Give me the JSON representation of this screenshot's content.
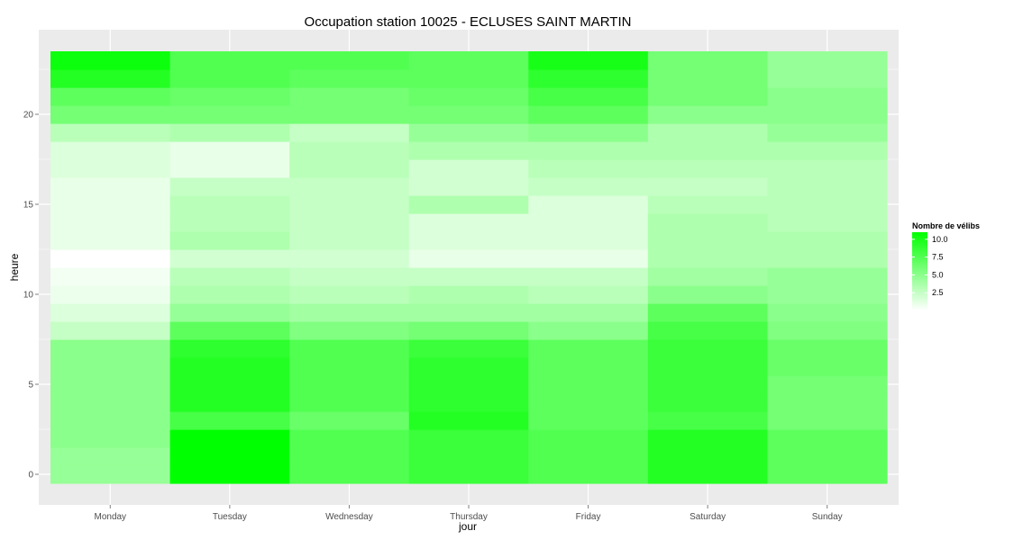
{
  "chart_data": {
    "type": "heatmap",
    "title": "Occupation station 10025 - ECLUSES SAINT MARTIN",
    "xlabel": "jour",
    "ylabel": "heure",
    "categories": [
      "Monday",
      "Tuesday",
      "Wednesday",
      "Thursday",
      "Friday",
      "Saturday",
      "Sunday"
    ],
    "hours": [
      0,
      1,
      2,
      3,
      4,
      5,
      6,
      7,
      8,
      9,
      10,
      11,
      12,
      13,
      14,
      15,
      16,
      17,
      18,
      19,
      20,
      21,
      22,
      23
    ],
    "yticks": [
      0,
      5,
      10,
      15,
      20
    ],
    "ylim": [
      -0.5,
      23.5
    ],
    "values": [
      [
        4.5,
        11.0,
        7.5,
        8.5,
        7.5,
        9.5,
        7.0
      ],
      [
        4.5,
        11.0,
        7.5,
        8.5,
        7.5,
        9.5,
        7.0
      ],
      [
        5.0,
        11.0,
        7.5,
        8.5,
        7.5,
        9.5,
        7.0
      ],
      [
        5.0,
        8.0,
        6.5,
        9.5,
        7.0,
        8.0,
        6.0
      ],
      [
        5.0,
        9.5,
        7.5,
        9.0,
        7.0,
        8.5,
        6.0
      ],
      [
        5.0,
        9.5,
        7.5,
        9.0,
        7.0,
        8.5,
        6.0
      ],
      [
        5.0,
        9.5,
        7.5,
        9.0,
        7.0,
        8.5,
        6.5
      ],
      [
        5.0,
        9.0,
        7.5,
        8.5,
        7.0,
        8.5,
        6.5
      ],
      [
        2.5,
        7.0,
        5.5,
        6.0,
        5.0,
        8.0,
        5.5
      ],
      [
        1.5,
        4.5,
        4.0,
        4.0,
        4.0,
        7.0,
        5.0
      ],
      [
        0.8,
        3.5,
        3.0,
        3.5,
        3.0,
        5.0,
        4.5
      ],
      [
        0.5,
        3.0,
        2.5,
        2.5,
        2.5,
        4.0,
        4.5
      ],
      [
        0.0,
        2.0,
        2.0,
        1.0,
        1.0,
        3.5,
        3.5
      ],
      [
        1.0,
        3.5,
        2.5,
        1.5,
        1.5,
        3.5,
        3.5
      ],
      [
        1.0,
        3.0,
        2.5,
        1.5,
        1.5,
        3.5,
        3.0
      ],
      [
        1.0,
        3.0,
        2.5,
        3.5,
        1.5,
        3.0,
        3.0
      ],
      [
        1.0,
        2.5,
        2.5,
        2.0,
        2.5,
        2.5,
        3.0
      ],
      [
        1.5,
        1.0,
        3.0,
        2.0,
        3.0,
        3.0,
        3.0
      ],
      [
        1.5,
        1.0,
        3.0,
        3.5,
        3.5,
        3.5,
        3.5
      ],
      [
        3.0,
        3.5,
        2.5,
        4.5,
        5.0,
        3.5,
        4.5
      ],
      [
        6.0,
        6.0,
        6.0,
        6.0,
        7.0,
        5.0,
        5.0
      ],
      [
        7.0,
        6.5,
        6.0,
        6.5,
        8.0,
        6.0,
        5.0
      ],
      [
        9.5,
        7.5,
        7.0,
        7.0,
        9.0,
        6.0,
        4.5
      ],
      [
        10.5,
        7.5,
        7.5,
        7.0,
        10.0,
        6.0,
        4.5
      ]
    ],
    "color_min": "#ffffff",
    "color_max": "#00ff00",
    "value_range": [
      0,
      11
    ],
    "legend": {
      "title": "Nombre de vélibs",
      "ticks": [
        "2.5",
        "5.0",
        "7.5",
        "10.0"
      ],
      "placement": "right"
    },
    "panel_background": "#ebebeb",
    "gridline_color": "#ffffff",
    "grid": true
  }
}
